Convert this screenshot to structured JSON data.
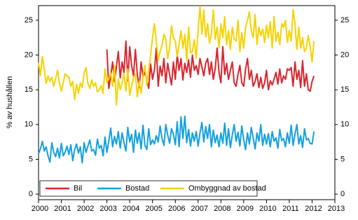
{
  "chart_data": {
    "type": "line",
    "y_label": "% av hushållen",
    "x": [
      2000,
      2000.083,
      2000.167,
      2000.25,
      2000.333,
      2000.417,
      2000.5,
      2000.583,
      2000.667,
      2000.75,
      2000.833,
      2000.917,
      2001,
      2001.083,
      2001.167,
      2001.25,
      2001.333,
      2001.417,
      2001.5,
      2001.583,
      2001.667,
      2001.75,
      2001.833,
      2001.917,
      2002,
      2002.083,
      2002.167,
      2002.25,
      2002.333,
      2002.417,
      2002.5,
      2002.583,
      2002.667,
      2002.75,
      2002.833,
      2002.917,
      2003,
      2003.083,
      2003.167,
      2003.25,
      2003.333,
      2003.417,
      2003.5,
      2003.583,
      2003.667,
      2003.75,
      2003.833,
      2003.917,
      2004,
      2004.083,
      2004.167,
      2004.25,
      2004.333,
      2004.417,
      2004.5,
      2004.583,
      2004.667,
      2004.75,
      2004.833,
      2004.917,
      2005,
      2005.083,
      2005.167,
      2005.25,
      2005.333,
      2005.417,
      2005.5,
      2005.583,
      2005.667,
      2005.75,
      2005.833,
      2005.917,
      2006,
      2006.083,
      2006.167,
      2006.25,
      2006.333,
      2006.417,
      2006.5,
      2006.583,
      2006.667,
      2006.75,
      2006.833,
      2006.917,
      2007,
      2007.083,
      2007.167,
      2007.25,
      2007.333,
      2007.417,
      2007.5,
      2007.583,
      2007.667,
      2007.75,
      2007.833,
      2007.917,
      2008,
      2008.083,
      2008.167,
      2008.25,
      2008.333,
      2008.417,
      2008.5,
      2008.583,
      2008.667,
      2008.75,
      2008.833,
      2008.917,
      2009,
      2009.083,
      2009.167,
      2009.25,
      2009.333,
      2009.417,
      2009.5,
      2009.583,
      2009.667,
      2009.75,
      2009.833,
      2009.917,
      2010,
      2010.083,
      2010.167,
      2010.25,
      2010.333,
      2010.417,
      2010.5,
      2010.583,
      2010.667,
      2010.75,
      2010.833,
      2010.917,
      2011,
      2011.083,
      2011.167,
      2011.25,
      2011.333,
      2011.417,
      2011.5,
      2011.583,
      2011.667,
      2011.75,
      2011.833,
      2011.917,
      2012,
      2012.083
    ],
    "series": [
      {
        "name": "Bil",
        "color": "#d9262f",
        "values": [
          null,
          null,
          null,
          null,
          null,
          null,
          null,
          null,
          null,
          null,
          null,
          null,
          null,
          null,
          null,
          null,
          null,
          null,
          null,
          null,
          null,
          null,
          null,
          null,
          null,
          null,
          null,
          null,
          null,
          null,
          null,
          null,
          null,
          null,
          null,
          null,
          20.8,
          15.2,
          17.0,
          19.0,
          16.2,
          18.3,
          20.5,
          16.7,
          19.0,
          17.5,
          22.0,
          16.3,
          21.2,
          18.5,
          17.0,
          20.8,
          17.2,
          15.3,
          19.0,
          16.9,
          17.5,
          16.4,
          15.2,
          18.7,
          16.5,
          17.8,
          21.0,
          15.5,
          18.4,
          17.0,
          19.5,
          16.0,
          18.8,
          17.2,
          15.7,
          19.0,
          16.5,
          20.0,
          17.8,
          19.5,
          16.4,
          18.8,
          17.5,
          19.3,
          16.8,
          20.0,
          17.8,
          18.5,
          17.2,
          19.5,
          18.3,
          17.0,
          18.8,
          19.5,
          17.2,
          19.0,
          16.5,
          18.0,
          21.0,
          17.5,
          16.0,
          21.2,
          17.2,
          18.8,
          16.5,
          17.8,
          19.0,
          16.0,
          15.5,
          17.2,
          18.5,
          16.0,
          15.5,
          18.0,
          19.5,
          16.5,
          17.8,
          15.5,
          16.2,
          17.3,
          15.3,
          16.8,
          15.2,
          16.0,
          17.8,
          15.0,
          16.3,
          15.7,
          16.5,
          17.5,
          15.8,
          18.0,
          16.0,
          17.0,
          16.5,
          18.0,
          17.8,
          18.2,
          15.5,
          19.0,
          16.5,
          17.8,
          15.3,
          19.2,
          15.5,
          17.3,
          15.0,
          14.8,
          16.2,
          17.0
        ]
      },
      {
        "name": "Bostad",
        "color": "#14a0e0",
        "values": [
          5.8,
          6.5,
          7.6,
          6.2,
          6.8,
          5.5,
          4.6,
          7.4,
          6.0,
          5.4,
          6.6,
          5.2,
          7.3,
          5.5,
          6.0,
          6.9,
          5.7,
          7.1,
          4.8,
          6.4,
          7.2,
          5.9,
          6.8,
          4.5,
          7.4,
          6.0,
          6.9,
          7.8,
          6.2,
          6.4,
          5.6,
          7.9,
          6.6,
          7.0,
          5.5,
          8.2,
          6.0,
          7.7,
          9.5,
          6.8,
          8.3,
          7.2,
          9.0,
          6.6,
          8.8,
          7.4,
          6.2,
          9.6,
          7.5,
          8.6,
          6.0,
          9.2,
          7.3,
          8.8,
          6.5,
          9.9,
          7.0,
          6.4,
          9.4,
          7.1,
          7.8,
          7.2,
          8.4,
          7.5,
          9.8,
          8.0,
          7.0,
          10.0,
          8.5,
          7.3,
          9.4,
          8.6,
          7.1,
          10.4,
          6.8,
          11.1,
          8.0,
          11.2,
          7.4,
          9.3,
          6.9,
          8.8,
          7.6,
          9.0,
          6.9,
          8.8,
          10.3,
          7.5,
          9.7,
          8.0,
          10.0,
          6.8,
          9.2,
          7.4,
          8.5,
          6.8,
          8.8,
          7.3,
          10.2,
          7.0,
          9.4,
          6.7,
          8.5,
          10.0,
          7.6,
          8.9,
          6.9,
          9.8,
          7.8,
          6.4,
          8.8,
          7.2,
          9.6,
          8.1,
          6.5,
          8.8,
          7.6,
          10.0,
          7.0,
          8.6,
          7.2,
          8.7,
          6.8,
          9.0,
          7.6,
          8.1,
          6.6,
          9.3,
          7.7,
          8.0,
          6.8,
          8.8,
          7.3,
          9.9,
          7.0,
          8.6,
          10.0,
          7.2,
          8.4,
          6.7,
          9.4,
          7.8,
          8.0,
          7.3,
          7.2,
          9.0
        ]
      },
      {
        "name": "Ombyggnad av bostad",
        "color": "#f7d200",
        "values": [
          18.9,
          17.0,
          19.8,
          18.0,
          15.9,
          17.0,
          16.2,
          16.8,
          15.5,
          16.6,
          17.8,
          16.0,
          14.8,
          16.0,
          17.3,
          17.0,
          16.8,
          15.5,
          16.2,
          13.6,
          15.8,
          14.5,
          16.0,
          15.3,
          17.4,
          18.2,
          15.9,
          15.2,
          16.4,
          15.5,
          16.0,
          14.7,
          15.0,
          15.6,
          14.5,
          18.0,
          16.0,
          16.7,
          17.4,
          15.5,
          18.5,
          12.8,
          16.5,
          15.0,
          16.0,
          17.3,
          14.8,
          18.0,
          14.2,
          15.5,
          16.7,
          17.3,
          14.0,
          16.3,
          14.5,
          17.0,
          18.5,
          15.7,
          17.8,
          20.0,
          22.5,
          24.5,
          22.0,
          19.2,
          20.5,
          21.4,
          23.0,
          22.3,
          19.5,
          21.0,
          24.2,
          22.5,
          22.0,
          19.8,
          21.5,
          23.5,
          21.0,
          23.0,
          19.2,
          24.0,
          20.3,
          20.5,
          22.2,
          19.5,
          23.5,
          27.0,
          23.0,
          26.5,
          22.6,
          24.5,
          21.7,
          23.0,
          26.5,
          22.3,
          24.0,
          21.0,
          24.5,
          22.5,
          25.5,
          21.5,
          23.5,
          20.8,
          24.0,
          22.3,
          22.0,
          25.0,
          20.5,
          23.2,
          21.0,
          24.0,
          25.0,
          26.2,
          23.5,
          22.5,
          25.8,
          21.5,
          24.0,
          22.8,
          23.7,
          21.8,
          24.3,
          22.5,
          24.8,
          21.0,
          25.5,
          22.0,
          23.3,
          21.5,
          24.5,
          24.0,
          25.0,
          21.8,
          23.5,
          22.0,
          26.5,
          24.5,
          20.8,
          24.0,
          21.0,
          22.5,
          20.5,
          21.0,
          22.8,
          21.2,
          19.0,
          22.0
        ]
      }
    ],
    "xlim": [
      2000,
      2013
    ],
    "xticks": [
      2000,
      2001,
      2002,
      2003,
      2004,
      2005,
      2006,
      2007,
      2008,
      2009,
      2010,
      2011,
      2012,
      2013
    ],
    "ylim": [
      -0.8,
      27.1
    ],
    "yticks": [
      0,
      5,
      10,
      15,
      20,
      25
    ],
    "right_axis_mirror": true,
    "legend": "lower left"
  }
}
